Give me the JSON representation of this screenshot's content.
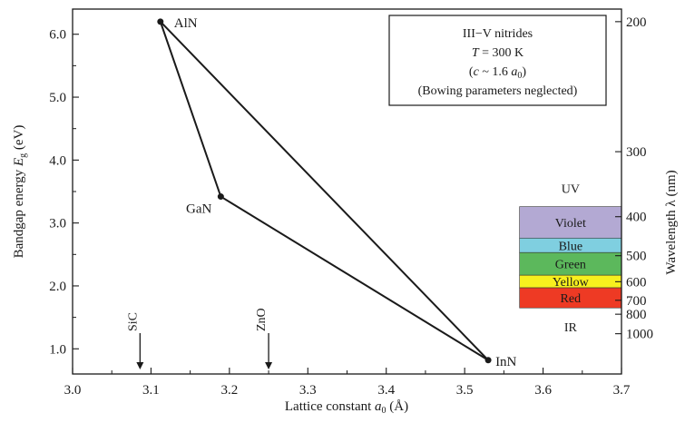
{
  "chart_data": {
    "type": "scatter",
    "xlabel": {
      "pre": "Lattice  constant  ",
      "var": "a",
      "sub": "0",
      "post": "  (Å)"
    },
    "ylabel": {
      "pre": "Bandgap  energy  ",
      "var": "E",
      "sub": "g",
      "post": "  (eV)"
    },
    "y2label": "Wavelength  λ  (nm)",
    "xlim": [
      3.0,
      3.7
    ],
    "ylim": [
      0.6,
      6.4
    ],
    "x_ticks": [
      3.0,
      3.1,
      3.2,
      3.3,
      3.4,
      3.5,
      3.6,
      3.7
    ],
    "x_tick_labels": [
      "3.0",
      "3.1",
      "3.2",
      "3.3",
      "3.4",
      "3.5",
      "3.6",
      "3.7"
    ],
    "y_ticks": [
      1.0,
      2.0,
      3.0,
      4.0,
      5.0,
      6.0
    ],
    "y_tick_labels": [
      "1.0",
      "2.0",
      "3.0",
      "4.0",
      "5.0",
      "6.0"
    ],
    "wavelength_ticks": [
      {
        "nm": 200,
        "label": "200"
      },
      {
        "nm": 300,
        "label": "300"
      },
      {
        "nm": 400,
        "label": "400"
      },
      {
        "nm": 500,
        "label": "500"
      },
      {
        "nm": 600,
        "label": "600"
      },
      {
        "nm": 700,
        "label": "700"
      },
      {
        "nm": 800,
        "label": "800"
      },
      {
        "nm": 1000,
        "label": "1000"
      }
    ],
    "points": [
      {
        "name": "AlN",
        "x": 3.112,
        "y": 6.2
      },
      {
        "name": "GaN",
        "x": 3.189,
        "y": 3.42
      },
      {
        "name": "InN",
        "x": 3.53,
        "y": 0.82
      }
    ],
    "edges": [
      [
        "AlN",
        "GaN"
      ],
      [
        "GaN",
        "InN"
      ],
      [
        "InN",
        "AlN"
      ]
    ],
    "reference_markers": [
      {
        "name": "SiC",
        "x": 3.086
      },
      {
        "name": "ZnO",
        "x": 3.25
      }
    ],
    "spectrum_bands": [
      {
        "name": "Violet",
        "color": "#b3a9d3",
        "ymin": 2.76,
        "ymax": 3.26
      },
      {
        "name": "Blue",
        "color": "#7fcfe0",
        "ymin": 2.53,
        "ymax": 2.76
      },
      {
        "name": "Green",
        "color": "#5cb85c",
        "ymin": 2.17,
        "ymax": 2.53
      },
      {
        "name": "Yellow",
        "color": "#f7f01e",
        "ymin": 1.97,
        "ymax": 2.17
      },
      {
        "name": "Red",
        "color": "#ee3a24",
        "ymin": 1.65,
        "ymax": 1.97
      }
    ],
    "region_labels": [
      {
        "name": "UV",
        "y": 3.55
      },
      {
        "name": "IR",
        "y": 1.35
      }
    ],
    "grid": false
  },
  "legend_box": {
    "line1": "III−V  nitrides",
    "line2_var": "T",
    "line2_rest": " = 300 K",
    "line3_pre": "(",
    "line3_var1": "c",
    "line3_mid": "  ~ 1.6 ",
    "line3_var2": "a",
    "line3_sub": "0",
    "line3_post": ")",
    "line4": "(Bowing parameters neglected)"
  }
}
